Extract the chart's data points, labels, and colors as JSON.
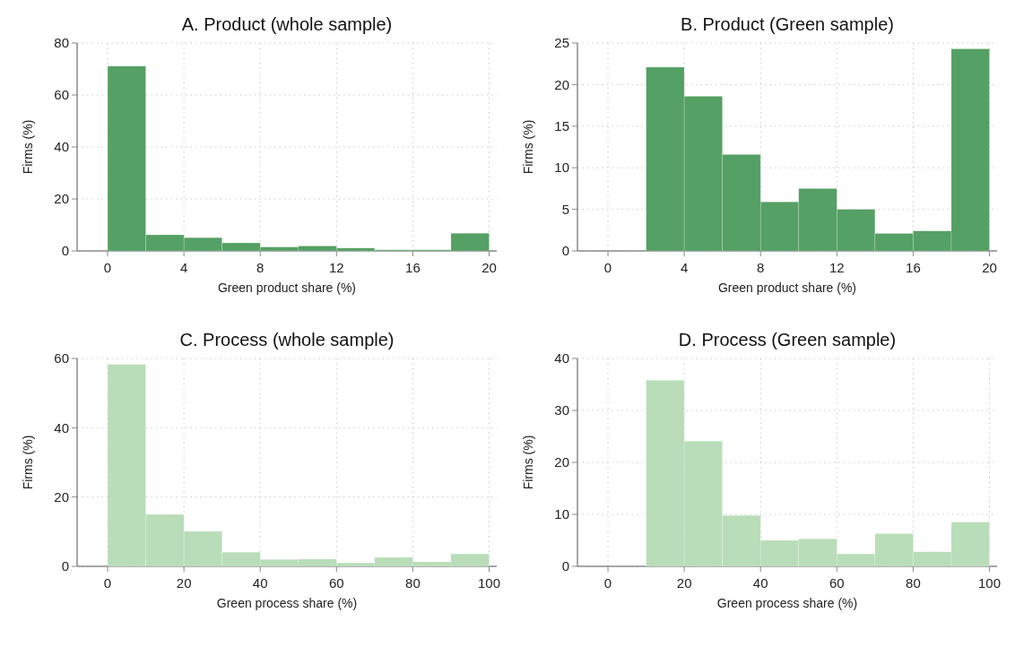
{
  "chart_data": [
    {
      "type": "histogram",
      "title": "A. Product (whole sample)",
      "xlabel": "Green product share (%)",
      "ylabel": "Firms (%)",
      "color": "#55a064",
      "bins": [
        0,
        2,
        4,
        6,
        8,
        10,
        12,
        14,
        16,
        18,
        20
      ],
      "values": [
        71.1,
        6.2,
        5.1,
        3.1,
        1.5,
        1.9,
        1.1,
        0.4,
        0.4,
        6.8
      ],
      "xlim": [
        -1.6,
        20.4
      ],
      "xticks": [
        0,
        4,
        8,
        12,
        16,
        20
      ],
      "ylim": [
        0,
        80
      ],
      "yticks": [
        0,
        20,
        40,
        60,
        80
      ],
      "grid": true
    },
    {
      "type": "histogram",
      "title": "B. Product (Green sample)",
      "xlabel": "Green product share (%)",
      "ylabel": "Firms (%)",
      "color": "#55a064",
      "bins": [
        0,
        2,
        4,
        6,
        8,
        10,
        12,
        14,
        16,
        18,
        20
      ],
      "values": [
        0,
        22.1,
        18.6,
        11.6,
        5.9,
        7.5,
        5.0,
        2.1,
        2.4,
        24.3
      ],
      "xlim": [
        -1.6,
        20.4
      ],
      "xticks": [
        0,
        4,
        8,
        12,
        16,
        20
      ],
      "ylim": [
        0,
        25
      ],
      "yticks": [
        0,
        5,
        10,
        15,
        20,
        25
      ],
      "grid": true
    },
    {
      "type": "histogram",
      "title": "C. Process (whole sample)",
      "xlabel": "Green process share (%)",
      "ylabel": "Firms (%)",
      "color": "#b8ddb8",
      "bins": [
        0,
        10,
        20,
        30,
        40,
        50,
        60,
        70,
        80,
        90,
        100
      ],
      "values": [
        58.3,
        15.0,
        10.1,
        4.1,
        2.0,
        2.1,
        1.0,
        2.6,
        1.3,
        3.6
      ],
      "xlim": [
        -8,
        102
      ],
      "xticks": [
        0,
        20,
        40,
        60,
        80,
        100
      ],
      "ylim": [
        0,
        60
      ],
      "yticks": [
        0,
        20,
        40,
        60
      ],
      "grid": true
    },
    {
      "type": "histogram",
      "title": "D. Process (Green sample)",
      "xlabel": "Green process share (%)",
      "ylabel": "Firms (%)",
      "color": "#b8ddb8",
      "bins": [
        0,
        10,
        20,
        30,
        40,
        50,
        60,
        70,
        80,
        90,
        100
      ],
      "values": [
        0,
        35.8,
        24.1,
        9.8,
        5.0,
        5.3,
        2.4,
        6.3,
        2.8,
        8.5
      ],
      "xlim": [
        -8,
        102
      ],
      "xticks": [
        0,
        20,
        40,
        60,
        80,
        100
      ],
      "ylim": [
        0,
        40
      ],
      "yticks": [
        0,
        10,
        20,
        30,
        40
      ],
      "grid": true
    }
  ]
}
